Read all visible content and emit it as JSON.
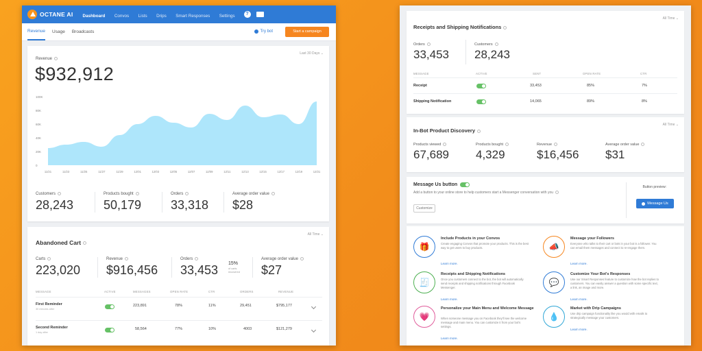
{
  "app": {
    "name": "OCTANE AI"
  },
  "nav": [
    "Dashboard",
    "Convos",
    "Lists",
    "Drips",
    "Smart Responses",
    "Settings"
  ],
  "tabs": [
    "Revenue",
    "Usage",
    "Broadcasts"
  ],
  "try_bot": "Try bot",
  "start_campaign": "Start a campaign",
  "revenue": {
    "label": "Revenue",
    "range": "Last 30 Days",
    "value": "$932,912",
    "stats": [
      {
        "label": "Customers",
        "value": "28,243"
      },
      {
        "label": "Products bought",
        "value": "50,179"
      },
      {
        "label": "Orders",
        "value": "33,318"
      },
      {
        "label": "Average order value",
        "value": "$28"
      }
    ]
  },
  "chart_data": {
    "type": "area",
    "x": [
      "11/21",
      "11/23",
      "11/25",
      "11/27",
      "11/29",
      "12/01",
      "12/03",
      "12/05",
      "12/07",
      "12/09",
      "12/11",
      "12/13",
      "12/15",
      "12/17",
      "12/19",
      "12/21"
    ],
    "y_ticks": [
      "100K",
      "80K",
      "60K",
      "40K",
      "20K",
      "0"
    ],
    "ylim": [
      0,
      100
    ],
    "values": [
      25,
      30,
      34,
      27,
      44,
      60,
      72,
      62,
      55,
      75,
      66,
      87,
      70,
      74,
      60,
      93
    ],
    "color": "#aee6fb"
  },
  "abandoned": {
    "title": "Abandoned Cart",
    "range": "All Time",
    "stats": [
      {
        "label": "Carts",
        "value": "223,020"
      },
      {
        "label": "Revenue",
        "value": "$916,456"
      },
      {
        "label": "Orders",
        "value": "33,453"
      },
      {
        "label": "Average order value",
        "value": "$27"
      }
    ],
    "pct": "15%",
    "pct_caption": "of carts recovered",
    "headers": [
      "MESSAGE",
      "ACTIVE",
      "MESSAGES",
      "OPEN RATE",
      "CTR",
      "ORDERS",
      "REVENUE"
    ],
    "rows": [
      {
        "name": "First Reminder",
        "sub": "30 minutes after",
        "messages": "223,891",
        "open": "78%",
        "ctr": "11%",
        "orders": "29,451",
        "revenue": "$795,177"
      },
      {
        "name": "Second Reminder",
        "sub": "1 day after",
        "messages": "58,564",
        "open": "77%",
        "ctr": "10%",
        "orders": "4003",
        "revenue": "$121,279"
      }
    ]
  },
  "receipts": {
    "title": "Receipts and Shipping Notifications",
    "range": "All Time",
    "stats": [
      {
        "label": "Orders",
        "value": "33,453"
      },
      {
        "label": "Customers",
        "value": "28,243"
      }
    ],
    "headers": [
      "MESSAGE",
      "ACTIVE",
      "SENT",
      "OPEN RATE",
      "CTR"
    ],
    "rows": [
      {
        "name": "Receipt",
        "sent": "33,453",
        "open": "85%",
        "ctr": "7%"
      },
      {
        "name": "Shipping Notification",
        "sent": "14,065",
        "open": "89%",
        "ctr": "8%"
      }
    ]
  },
  "discovery": {
    "title": "In-Bot Product Discovery",
    "range": "All Time",
    "stats": [
      {
        "label": "Products viewed",
        "value": "67,689"
      },
      {
        "label": "Products bought",
        "value": "4,329"
      },
      {
        "label": "Revenue",
        "value": "$16,456"
      },
      {
        "label": "Average order value",
        "value": "$31"
      }
    ]
  },
  "message_us": {
    "title": "Message Us button",
    "desc": "Add a button to your online store to help customers start a Messenger conversation with you",
    "customize": "Customize",
    "preview_label": "Button preview:",
    "button_label": "Message Us"
  },
  "features": [
    {
      "title": "Include Products in your Convos",
      "desc": "Create engaging Convos that promote your products. This is the best way to get users to buy products.",
      "link": "Learn more.",
      "icon": "gift-icon",
      "color": "#2f7bd6",
      "glyph": "🎁"
    },
    {
      "title": "Message your Followers",
      "desc": "Everyone who talks to their cart or bots in your bot is a follower. You can email them messages and connect to re-engage them.",
      "link": "Learn more.",
      "icon": "megaphone-icon",
      "color": "#f6861f",
      "glyph": "📣"
    },
    {
      "title": "Receipts and Shipping Notifications",
      "desc": "Once you customers connect to the bot, the bot will automatically send receipts and shipping notifications through Facebook Messenger.",
      "link": "Learn more.",
      "icon": "receipt-icon",
      "color": "#4caf50",
      "glyph": "🧾"
    },
    {
      "title": "Customize Your Bot's Responses",
      "desc": "Use our Smart Responses feature to customize how the bot replies to customers. You can easily answer a question with some specific text, a link, an image and more.",
      "link": "Learn more.",
      "icon": "chat-bubbles-icon",
      "color": "#2f7bd6",
      "glyph": "💬"
    },
    {
      "title": "Personalize your Main Menu and Welcome Message",
      "desc": "When someone message you on Facebook they'll see the welcome message and main menu. You can customize it from your bot's settings.",
      "link": "Learn more.",
      "icon": "heart-icon",
      "color": "#e05c9b",
      "glyph": "💗"
    },
    {
      "title": "Market with Drip Campaigns",
      "desc": "Use drip campaign functionality like you would with emails to strategically message your customers.",
      "link": "Learn more.",
      "icon": "drop-icon",
      "color": "#2fa6d6",
      "glyph": "💧"
    }
  ]
}
